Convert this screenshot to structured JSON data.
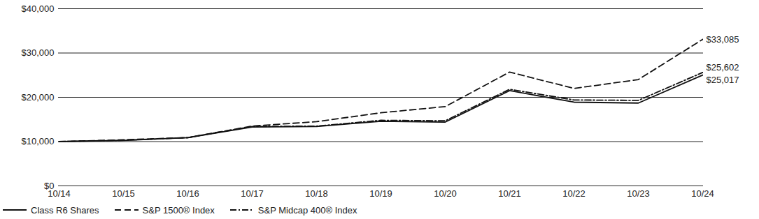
{
  "chart_data": {
    "type": "line",
    "x": [
      "10/14",
      "10/15",
      "10/16",
      "10/17",
      "10/18",
      "10/19",
      "10/20",
      "10/21",
      "10/22",
      "10/23",
      "10/24"
    ],
    "series": [
      {
        "name": "Class R6 Shares",
        "color": "#111111",
        "line_style": "solid",
        "values": [
          10000,
          10250,
          10900,
          13300,
          13400,
          14600,
          14400,
          21500,
          18900,
          18700,
          25017
        ]
      },
      {
        "name": "S&P 1500® Index",
        "color": "#111111",
        "line_style": "dashed",
        "values": [
          10000,
          10400,
          10900,
          13500,
          14500,
          16500,
          17900,
          25700,
          22000,
          24000,
          33085
        ]
      },
      {
        "name": "S&P Midcap 400® Index",
        "color": "#111111",
        "line_style": "dashdot",
        "values": [
          10000,
          10300,
          10900,
          13400,
          13500,
          14800,
          14700,
          21800,
          19400,
          19300,
          25602
        ]
      }
    ],
    "ylim": [
      0,
      40000
    ],
    "yticks": [
      {
        "value": 0,
        "label": "$0"
      },
      {
        "value": 10000,
        "label": "$10,000"
      },
      {
        "value": 20000,
        "label": "$20,000"
      },
      {
        "value": 30000,
        "label": "$30,000"
      },
      {
        "value": 40000,
        "label": "$40,000"
      }
    ],
    "grid": true,
    "legend": "bottom-left",
    "annotations": [
      {
        "x": "10/24",
        "y": 33085,
        "text": "$33,085"
      },
      {
        "x": "10/24",
        "y": 25602,
        "text": "$25,602"
      },
      {
        "x": "10/24",
        "y": 25017,
        "text": "$25,017"
      }
    ]
  }
}
